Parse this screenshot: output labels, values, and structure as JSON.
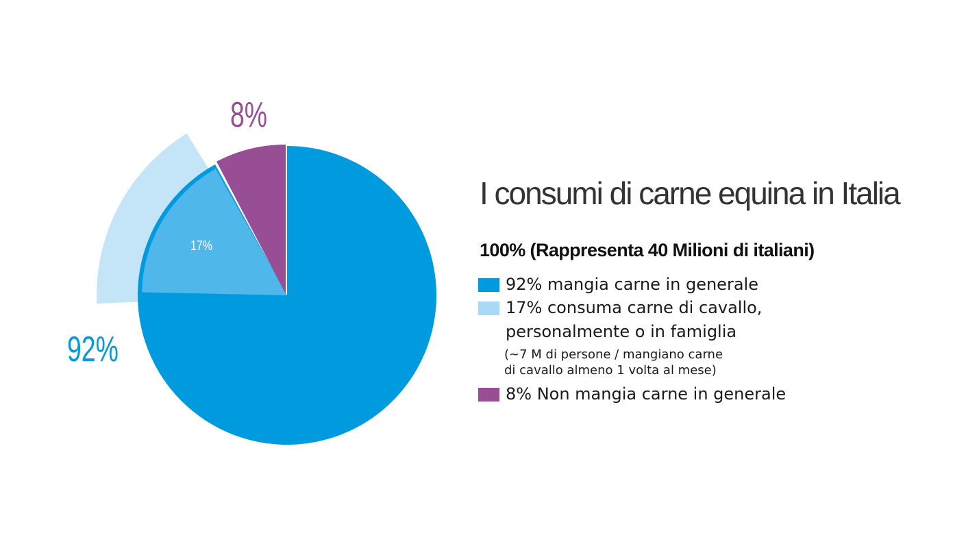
{
  "colors": {
    "main_blue": "#009ADE",
    "light_blue": "#50B7EA",
    "pale_blue": "#C4E4F7",
    "purple": "#974E95",
    "title_gray": "#333333"
  },
  "chart_data": {
    "type": "pie",
    "title": "I consumi di carne equina in Italia",
    "subtitle": "100% (Rappresenta 40 Milioni di italiani)",
    "slices": [
      {
        "label": "92%",
        "value": 92,
        "color": "#009ADE"
      },
      {
        "label": "8%",
        "value": 8,
        "color": "#974E95"
      }
    ],
    "inner_slice": {
      "label": "17%",
      "value": 17,
      "color": "#50B7EA",
      "part_of": "92%"
    },
    "legend_position": "right",
    "legend": [
      {
        "label": "92% mangia carne in generale",
        "color": "#009ADE"
      },
      {
        "label_line1": "17% consuma carne di cavallo,",
        "label_line2": "personalmente o in famiglia",
        "note_line1": "(~7 M di persone / mangiano carne",
        "note_line2": "di cavallo almeno 1 volta al mese)",
        "color": "#A9D9F5"
      },
      {
        "label": "8% Non mangia carne in generale",
        "color": "#974E95"
      }
    ]
  }
}
